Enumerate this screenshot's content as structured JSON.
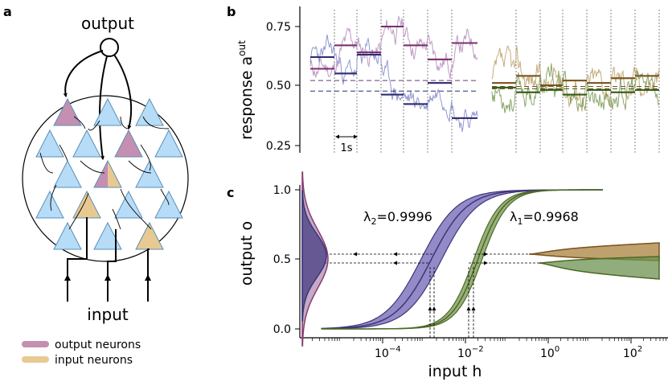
{
  "panel_a": {
    "label": "a",
    "output_label": "output",
    "input_label": "input",
    "legend": [
      {
        "label": "output neurons",
        "color": "#c48fb0"
      },
      {
        "label": "input neurons",
        "color": "#e8c992"
      }
    ],
    "colors": {
      "neuron": "#b7dcf7",
      "neuron_edge": "#5a8fb8",
      "output": "#c48fb0",
      "input": "#e8c992"
    }
  },
  "panel_b": {
    "label": "b",
    "ylabel": "response a",
    "ylabel_sup": "out",
    "scale_label": "1s",
    "yticks": [
      "0.25",
      "0.50",
      "0.75"
    ]
  },
  "panel_c": {
    "label": "c",
    "ylabel": "output o",
    "xlabel": "input h",
    "yticks": [
      "0.0",
      "0.5",
      "1.0"
    ],
    "xticks": [
      {
        "base": "10",
        "exp": "−4"
      },
      {
        "base": "10",
        "exp": "−2"
      },
      {
        "base": "10",
        "exp": "0"
      },
      {
        "base": "10",
        "exp": "2"
      }
    ],
    "lambda2": {
      "label": "λ",
      "sub": "2",
      "value": "=0.9996",
      "color": "#5a4f98"
    },
    "lambda1": {
      "label": "λ",
      "sub": "1",
      "value": "=0.9968",
      "color": "#5e7a3a"
    }
  },
  "chart_data": [
    {
      "type": "line",
      "title": "",
      "ylabel": "response a^out",
      "ylim": [
        0.22,
        0.83
      ],
      "series": [
        {
          "name": "λ2 purple trace",
          "segment_means": [
            0.57,
            0.67,
            0.64,
            0.75,
            0.67,
            0.61,
            0.68
          ]
        },
        {
          "name": "λ2 blue trace",
          "segment_means": [
            0.62,
            0.55,
            0.63,
            0.46,
            0.42,
            0.51,
            0.36
          ]
        },
        {
          "name": "λ1 brown trace",
          "segment_means": [
            0.51,
            0.54,
            0.5,
            0.52,
            0.51,
            0.53,
            0.54
          ]
        },
        {
          "name": "λ1 green trace",
          "segment_means": [
            0.49,
            0.47,
            0.48,
            0.46,
            0.48,
            0.47,
            0.48
          ]
        }
      ]
    },
    {
      "type": "area",
      "xlabel": "input h",
      "ylabel": "output o",
      "xscale": "log",
      "xlim": [
        1e-06,
        1000.0
      ],
      "ylim": [
        0,
        1
      ],
      "series": [
        {
          "name": "λ2=0.9996",
          "midpoint_h": 0.0015
        },
        {
          "name": "λ1=0.9968",
          "midpoint_h": 0.02
        }
      ]
    }
  ]
}
